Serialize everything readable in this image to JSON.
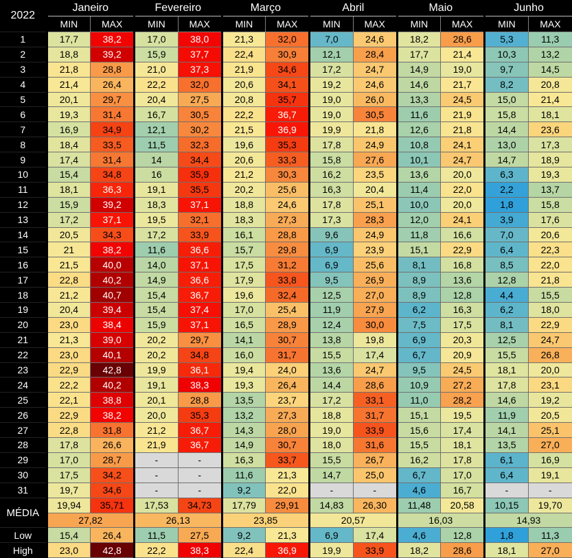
{
  "chart_data": {
    "type": "heatmap",
    "year": "2022",
    "sub_min": "MIN",
    "sub_max": "MAX",
    "labels": {
      "media": "MÉDIA",
      "low": "Low",
      "high": "High",
      "empty": "-"
    },
    "days": [
      "1",
      "2",
      "3",
      "4",
      "5",
      "6",
      "7",
      "8",
      "9",
      "10",
      "11",
      "12",
      "13",
      "14",
      "15",
      "16",
      "17",
      "18",
      "19",
      "20",
      "21",
      "22",
      "23",
      "24",
      "25",
      "26",
      "27",
      "28",
      "29",
      "30",
      "31"
    ],
    "months": [
      {
        "name": "Janeiro",
        "min": [
          "17,7",
          "18,8",
          "21,8",
          "21,4",
          "20,1",
          "19,3",
          "16,9",
          "18,4",
          "17,4",
          "15,4",
          "18,1",
          "15,9",
          "17,2",
          "20,5",
          "21",
          "21,5",
          "22,8",
          "21,2",
          "20,4",
          "23,0",
          "21,3",
          "23,0",
          "22,9",
          "22,2",
          "22,1",
          "22,9",
          "22,8",
          "17,8",
          "17,0",
          "17,5",
          "19,7"
        ],
        "max": [
          "38,2",
          "39,2",
          "28,8",
          "26,4",
          "29,7",
          "31,4",
          "34,9",
          "33,5",
          "31,4",
          "34,8",
          "36,3",
          "39,2",
          "37,1",
          "34,3",
          "38,2",
          "40,0",
          "40,2",
          "40,7",
          "39,4",
          "38,4",
          "39,0",
          "40,1",
          "42,8",
          "40,2",
          "38,8",
          "38,2",
          "31,8",
          "26,6",
          "28,7",
          "34,2",
          "34,6"
        ],
        "media_min": "19,94",
        "media_max": "35,71",
        "media_month": "27,82",
        "low_min": "15,4",
        "low_max": "26,4",
        "high_min": "23,0",
        "high_max": "42,8"
      },
      {
        "name": "Fevereiro",
        "min": [
          "17,0",
          "15,9",
          "21,0",
          "22,2",
          "20,4",
          "16,7",
          "12,1",
          "11,5",
          "14",
          "16",
          "19,1",
          "18,3",
          "19,5",
          "17,2",
          "11,6",
          "14,0",
          "14,9",
          "15,4",
          "15,4",
          "15,9",
          "20,2",
          "20,2",
          "19,9",
          "19,1",
          "20,1",
          "20,0",
          "21,2",
          "21,9",
          null,
          null,
          null
        ],
        "max": [
          "38,0",
          "37,7",
          "37,3",
          "32,0",
          "27,5",
          "30,5",
          "30,2",
          "32,3",
          "34,4",
          "35,9",
          "35,5",
          "37,1",
          "32,1",
          "33,9",
          "36,6",
          "37,1",
          "36,6",
          "36,7",
          "37,4",
          "37,1",
          "29,7",
          "34,8",
          "36,1",
          "38,3",
          "28,8",
          "35,3",
          "36,7",
          "36,7",
          null,
          null,
          null
        ],
        "media_min": "17,53",
        "media_max": "34,73",
        "media_month": "26,13",
        "low_min": "11,5",
        "low_max": "27,5",
        "high_min": "22,2",
        "high_max": "38,3"
      },
      {
        "name": "Março",
        "min": [
          "21,3",
          "22,4",
          "21,9",
          "20,6",
          "20,8",
          "22,2",
          "21,5",
          "19,6",
          "20,6",
          "21,2",
          "20,2",
          "18,8",
          "18,3",
          "16,1",
          "15,7",
          "17,5",
          "17,9",
          "19,6",
          "17,0",
          "16,5",
          "14,1",
          "16,0",
          "19,4",
          "19,3",
          "13,5",
          "13,2",
          "14,3",
          "14,9",
          "16,3",
          "11,6",
          "9,2"
        ],
        "max": [
          "32,0",
          "30,9",
          "34,6",
          "34,1",
          "35,7",
          "36,7",
          "36,9",
          "35,3",
          "33,3",
          "30,3",
          "25,6",
          "24,6",
          "27,3",
          "28,8",
          "29,8",
          "31,2",
          "33,8",
          "32,4",
          "25,4",
          "28,9",
          "30,7",
          "31,7",
          "24,0",
          "26,4",
          "23,7",
          "27,3",
          "28,0",
          "30,7",
          "33,7",
          "21,3",
          "22,0"
        ],
        "media_min": "17,79",
        "media_max": "29,91",
        "media_month": "23,85",
        "low_min": "9,2",
        "low_max": "21,3",
        "high_min": "22,4",
        "high_max": "36,9"
      },
      {
        "name": "Abril",
        "min": [
          "7,0",
          "12,1",
          "17,2",
          "19,2",
          "19,0",
          "19,0",
          "19,9",
          "17,8",
          "15,8",
          "16,2",
          "16,3",
          "17,8",
          "17,3",
          "9,6",
          "6,9",
          "6,9",
          "9,5",
          "12,5",
          "11,9",
          "12,4",
          "13,8",
          "15,5",
          "13,6",
          "14,4",
          "17,2",
          "18,8",
          "19,0",
          "18,0",
          "15,5",
          "14,7",
          null
        ],
        "max": [
          "24,6",
          "28,4",
          "24,7",
          "24,6",
          "26,0",
          "30,5",
          "21,8",
          "24,9",
          "27,6",
          "23,5",
          "20,4",
          "25,1",
          "28,3",
          "24,9",
          "23,9",
          "25,6",
          "26,9",
          "27,0",
          "27,9",
          "30,0",
          "19,8",
          "17,4",
          "24,7",
          "28,6",
          "33,1",
          "31,7",
          "33,9",
          "31,6",
          "26,7",
          "25,0",
          null
        ],
        "media_min": "14,83",
        "media_max": "26,30",
        "media_month": "20,57",
        "low_min": "6,9",
        "low_max": "17,4",
        "high_min": "19,9",
        "high_max": "33,9"
      },
      {
        "name": "Maio",
        "min": [
          "18,2",
          "17,7",
          "14,9",
          "14,6",
          "13,3",
          "11,6",
          "12,6",
          "10,8",
          "10,1",
          "13,6",
          "11,4",
          "10,0",
          "12,0",
          "11,8",
          "15,1",
          "8,1",
          "8,9",
          "8,9",
          "6,2",
          "7,5",
          "6,9",
          "6,7",
          "9,5",
          "10,9",
          "11,0",
          "15,1",
          "15,6",
          "15,5",
          "16,2",
          "6,7",
          "4,6"
        ],
        "max": [
          "28,6",
          "21,4",
          "19,0",
          "21,7",
          "24,5",
          "21,9",
          "21,8",
          "24,1",
          "24,7",
          "20,0",
          "22,0",
          "20,0",
          "24,1",
          "16,6",
          "22,9",
          "16,8",
          "13,6",
          "12,8",
          "16,3",
          "17,5",
          "20,3",
          "20,9",
          "24,5",
          "27,2",
          "28,2",
          "19,5",
          "17,4",
          "18,1",
          "17,8",
          "17,0",
          "16,7"
        ],
        "media_min": "11,48",
        "media_max": "20,58",
        "media_month": "16,03",
        "low_min": "4,6",
        "low_max": "12,8",
        "high_min": "18,2",
        "high_max": "28,6"
      },
      {
        "name": "Junho",
        "min": [
          "5,3",
          "10,3",
          "9,7",
          "8,2",
          "15,0",
          "15,8",
          "14,4",
          "13,0",
          "14,7",
          "6,3",
          "2,2",
          "1,8",
          "3,9",
          "7,0",
          "6,4",
          "8,5",
          "12,8",
          "4,4",
          "6,2",
          "8,1",
          "12,5",
          "15,5",
          "18,1",
          "17,8",
          "14,6",
          "11,9",
          "14,1",
          "13,5",
          "6,1",
          "6,4",
          null
        ],
        "max": [
          "11,3",
          "13,2",
          "14,5",
          "20,8",
          "21,4",
          "18,1",
          "23,6",
          "17,3",
          "18,9",
          "19,3",
          "13,7",
          "15,8",
          "17,6",
          "20,6",
          "22,3",
          "22,0",
          "21,8",
          "15,5",
          "18,0",
          "22,9",
          "24,7",
          "26,8",
          "20,0",
          "23,1",
          "19,2",
          "20,5",
          "25,1",
          "27,0",
          "16,9",
          "19,1",
          null
        ],
        "media_min": "10,15",
        "media_max": "19,70",
        "media_month": "14,93",
        "low_min": "1,8",
        "low_max": "11,3",
        "high_min": "18,1",
        "high_max": "27,0"
      }
    ],
    "colors": {
      "empty_bg": "#D9D9D9",
      "white_text_min": 36,
      "scale": [
        [
          1.8,
          "#30A0DA"
        ],
        [
          5.0,
          "#4FAFD1"
        ],
        [
          8.0,
          "#72BDC3"
        ],
        [
          11.0,
          "#97CBB1"
        ],
        [
          14.0,
          "#B9D6A4"
        ],
        [
          17.0,
          "#D6E1A0"
        ],
        [
          19.5,
          "#EBE79D"
        ],
        [
          21.5,
          "#F9E794"
        ],
        [
          23.5,
          "#FBD67D"
        ],
        [
          26.0,
          "#F9B961"
        ],
        [
          28.5,
          "#F89E4B"
        ],
        [
          31.0,
          "#F77E36"
        ],
        [
          33.5,
          "#F65B1F"
        ],
        [
          35.5,
          "#F5380F"
        ],
        [
          37.0,
          "#F81505"
        ],
        [
          38.3,
          "#F00202"
        ],
        [
          39.3,
          "#CE0000"
        ],
        [
          40.8,
          "#9E0000"
        ],
        [
          42.8,
          "#680004"
        ]
      ]
    }
  }
}
